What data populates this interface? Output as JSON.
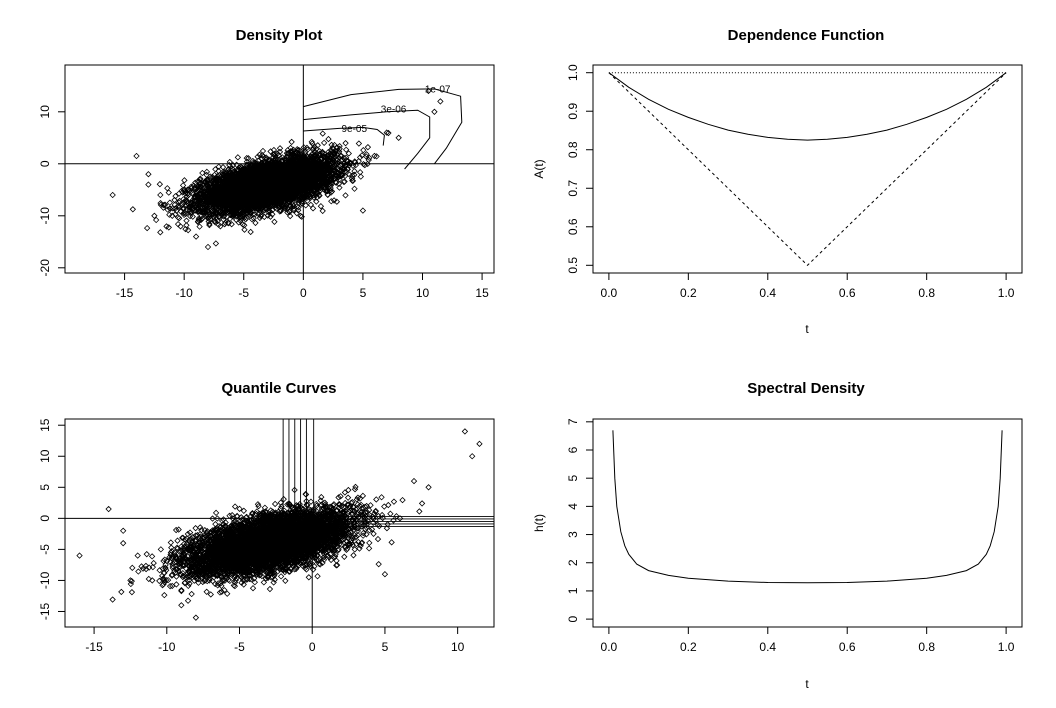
{
  "chart_data": [
    {
      "id": "density",
      "type": "scatter",
      "title": "Density Plot",
      "xlabel": "",
      "ylabel": "",
      "xlim": [
        -20,
        16
      ],
      "ylim": [
        -21,
        19
      ],
      "xticks": [
        "-15",
        "-10",
        "-5",
        "0",
        "5",
        "10",
        "15"
      ],
      "yticks": [
        "-20",
        "-10",
        "0",
        "10"
      ],
      "contour_labels": [
        "1e-07",
        "3e-06",
        "9e-05"
      ],
      "cloud": {
        "center": [
          -3,
          -4
        ],
        "sd": [
          2.8,
          2.6
        ],
        "corr": 0.55,
        "n": 6000
      },
      "outliers": [
        [
          -16,
          -6
        ],
        [
          -14,
          1.5
        ],
        [
          -13,
          -4
        ],
        [
          -12.5,
          -10
        ],
        [
          -11,
          -10
        ],
        [
          -9,
          -14
        ],
        [
          -8,
          -16
        ],
        [
          5,
          -9
        ],
        [
          7,
          6
        ],
        [
          8,
          5
        ],
        [
          10.5,
          14
        ],
        [
          11.5,
          12
        ],
        [
          11,
          10
        ],
        [
          -13,
          -2
        ],
        [
          -12,
          -6
        ]
      ]
    },
    {
      "id": "dependence",
      "type": "line",
      "title": "Dependence Function",
      "xlabel": "t",
      "ylabel": "A(t)",
      "xlim": [
        -0.04,
        1.04
      ],
      "ylim": [
        0.48,
        1.02
      ],
      "xticks": [
        "0.0",
        "0.2",
        "0.4",
        "0.6",
        "0.8",
        "1.0"
      ],
      "yticks": [
        "0.5",
        "0.6",
        "0.7",
        "0.8",
        "0.9",
        "1.0"
      ],
      "series": [
        {
          "style": "solid",
          "x": [
            0,
            0.05,
            0.1,
            0.15,
            0.2,
            0.25,
            0.3,
            0.35,
            0.4,
            0.45,
            0.5,
            0.55,
            0.6,
            0.65,
            0.7,
            0.75,
            0.8,
            0.85,
            0.9,
            0.95,
            1
          ],
          "y": [
            1.0,
            0.962,
            0.931,
            0.905,
            0.884,
            0.866,
            0.851,
            0.84,
            0.832,
            0.827,
            0.825,
            0.827,
            0.832,
            0.84,
            0.851,
            0.866,
            0.884,
            0.905,
            0.931,
            0.962,
            1.0
          ]
        },
        {
          "style": "dashed",
          "x": [
            0,
            0.5,
            1
          ],
          "y": [
            1,
            0.5,
            1
          ]
        },
        {
          "style": "dotted",
          "x": [
            0,
            1
          ],
          "y": [
            1,
            1
          ]
        }
      ]
    },
    {
      "id": "quantile",
      "type": "scatter",
      "title": "Quantile Curves",
      "xlabel": "",
      "ylabel": "",
      "xlim": [
        -17,
        12.5
      ],
      "ylim": [
        -17.5,
        16
      ],
      "xticks": [
        "-15",
        "-10",
        "-5",
        "0",
        "5",
        "10"
      ],
      "yticks": [
        "-15",
        "-10",
        "-5",
        "0",
        "5",
        "10",
        "15"
      ],
      "cloud": {
        "center": [
          -3,
          -4
        ],
        "sd": [
          2.8,
          2.6
        ],
        "corr": 0.55,
        "n": 6000
      },
      "outliers": [
        [
          -16,
          -6
        ],
        [
          -14,
          1.5
        ],
        [
          -13,
          -4
        ],
        [
          -12.5,
          -10
        ],
        [
          -11,
          -10
        ],
        [
          -9,
          -14
        ],
        [
          -8,
          -16
        ],
        [
          5,
          -9
        ],
        [
          7,
          6
        ],
        [
          8,
          5
        ],
        [
          10.5,
          14
        ],
        [
          11.5,
          12
        ],
        [
          11,
          10
        ],
        [
          -13,
          -2
        ],
        [
          -12,
          -6
        ]
      ]
    },
    {
      "id": "spectral",
      "type": "line",
      "title": "Spectral Density",
      "xlabel": "t",
      "ylabel": "h(t)",
      "xlim": [
        -0.04,
        1.04
      ],
      "ylim": [
        -0.28,
        7.1
      ],
      "xticks": [
        "0.0",
        "0.2",
        "0.4",
        "0.6",
        "0.8",
        "1.0"
      ],
      "yticks": [
        "0",
        "1",
        "2",
        "3",
        "4",
        "5",
        "6",
        "7"
      ],
      "series": [
        {
          "style": "solid",
          "x": [
            0.01,
            0.015,
            0.02,
            0.03,
            0.04,
            0.05,
            0.07,
            0.1,
            0.15,
            0.2,
            0.3,
            0.4,
            0.5,
            0.6,
            0.7,
            0.8,
            0.85,
            0.9,
            0.93,
            0.95,
            0.96,
            0.97,
            0.98,
            0.985,
            0.99
          ],
          "y": [
            6.7,
            5.0,
            4.0,
            3.1,
            2.6,
            2.3,
            1.95,
            1.72,
            1.55,
            1.45,
            1.35,
            1.3,
            1.29,
            1.3,
            1.35,
            1.45,
            1.55,
            1.72,
            1.95,
            2.3,
            2.6,
            3.1,
            4.0,
            5.0,
            6.7
          ]
        }
      ]
    }
  ]
}
